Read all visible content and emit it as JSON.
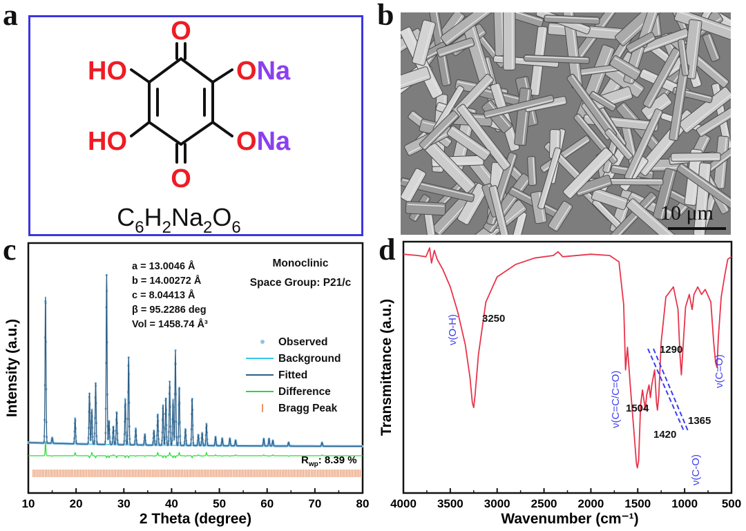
{
  "panels": {
    "a": {
      "label": "a"
    },
    "b": {
      "label": "b",
      "scale_bar": "10 μm"
    },
    "c": {
      "label": "c"
    },
    "d": {
      "label": "d"
    }
  },
  "molecule": {
    "top_o": "O",
    "bottom_o": "O",
    "ho_top": "HO",
    "ho_bottom": "HO",
    "ona_top_o": "O",
    "ona_top_na": "Na",
    "ona_bottom_o": "O",
    "ona_bottom_na": "Na",
    "formula": {
      "c": "C",
      "c_sub": "6",
      "h": "H",
      "h_sub": "2",
      "na": "Na",
      "na_sub": "2",
      "o": "O",
      "o_sub": "6"
    },
    "colors": {
      "oxygen": "#ee1c24",
      "sodium": "#8a40f0",
      "bond": "#111111",
      "frame": "#3c35e0"
    }
  },
  "chart_data": [
    {
      "type": "line",
      "xlabel": "2 Theta (degree)",
      "ylabel": "Intensity (a.u.)",
      "xlim": [
        10,
        80
      ],
      "xticks": [
        10,
        20,
        30,
        40,
        50,
        60,
        70,
        80
      ],
      "lattice": [
        "a = 13.0046 Å",
        "b = 14.00272 Å",
        "c = 8.04413 Å",
        "β = 95.2286 deg",
        "Vol = 1458.74 Å³"
      ],
      "crystal": [
        "Monoclinic",
        "Space Group: P21/c"
      ],
      "rwp": {
        "label": "R",
        "sub": "wp",
        "value": ": 8.39 %"
      },
      "legend": [
        {
          "name": "Observed",
          "color": "#8ec4e6",
          "marker": "circle"
        },
        {
          "name": "Background",
          "color": "#33c8e8",
          "marker": "line"
        },
        {
          "name": "Fitted",
          "color": "#2d5f87",
          "marker": "line"
        },
        {
          "name": "Difference",
          "color": "#22dd33",
          "marker": "line"
        },
        {
          "name": "Bragg Peak",
          "color": "#e8956a",
          "marker": "tick"
        }
      ],
      "peaks": [
        {
          "x": 13.6,
          "h": 0.8
        },
        {
          "x": 15.0,
          "h": 0.03
        },
        {
          "x": 19.8,
          "h": 0.14
        },
        {
          "x": 22.8,
          "h": 0.28
        },
        {
          "x": 23.3,
          "h": 0.19
        },
        {
          "x": 24.1,
          "h": 0.34
        },
        {
          "x": 26.4,
          "h": 0.93
        },
        {
          "x": 26.9,
          "h": 0.13
        },
        {
          "x": 27.8,
          "h": 0.1
        },
        {
          "x": 28.5,
          "h": 0.18
        },
        {
          "x": 30.3,
          "h": 0.25
        },
        {
          "x": 31.0,
          "h": 0.48
        },
        {
          "x": 32.5,
          "h": 0.09
        },
        {
          "x": 34.4,
          "h": 0.06
        },
        {
          "x": 36.3,
          "h": 0.08
        },
        {
          "x": 37.1,
          "h": 0.17
        },
        {
          "x": 38.2,
          "h": 0.22
        },
        {
          "x": 38.8,
          "h": 0.26
        },
        {
          "x": 39.6,
          "h": 0.35
        },
        {
          "x": 40.3,
          "h": 0.25
        },
        {
          "x": 40.8,
          "h": 0.52
        },
        {
          "x": 41.6,
          "h": 0.32
        },
        {
          "x": 42.9,
          "h": 0.09
        },
        {
          "x": 44.3,
          "h": 0.26
        },
        {
          "x": 45.6,
          "h": 0.06
        },
        {
          "x": 46.4,
          "h": 0.07
        },
        {
          "x": 47.3,
          "h": 0.12
        },
        {
          "x": 49.2,
          "h": 0.05
        },
        {
          "x": 50.6,
          "h": 0.04
        },
        {
          "x": 52.2,
          "h": 0.04
        },
        {
          "x": 53.4,
          "h": 0.03
        },
        {
          "x": 59.3,
          "h": 0.04
        },
        {
          "x": 60.4,
          "h": 0.04
        },
        {
          "x": 61.2,
          "h": 0.03
        },
        {
          "x": 64.5,
          "h": 0.02
        },
        {
          "x": 71.5,
          "h": 0.02
        }
      ]
    },
    {
      "type": "line",
      "xlabel": "Wavenumber (cm⁻¹)",
      "ylabel": "Transmittance (a.u.)",
      "xlim": [
        4000,
        500
      ],
      "xticks": [
        4000,
        3500,
        3000,
        2500,
        2000,
        1500,
        1000,
        500
      ],
      "series": [
        {
          "color": "#e8334a",
          "points": [
            [
              4000,
              0.95
            ],
            [
              3850,
              0.945
            ],
            [
              3760,
              0.94
            ],
            [
              3720,
              0.975
            ],
            [
              3700,
              0.915
            ],
            [
              3670,
              0.965
            ],
            [
              3640,
              0.93
            ],
            [
              3580,
              0.89
            ],
            [
              3500,
              0.82
            ],
            [
              3420,
              0.72
            ],
            [
              3340,
              0.59
            ],
            [
              3290,
              0.46
            ],
            [
              3265,
              0.36
            ],
            [
              3250,
              0.34
            ],
            [
              3235,
              0.39
            ],
            [
              3200,
              0.55
            ],
            [
              3120,
              0.76
            ],
            [
              3000,
              0.86
            ],
            [
              2800,
              0.91
            ],
            [
              2600,
              0.935
            ],
            [
              2400,
              0.945
            ],
            [
              2350,
              0.96
            ],
            [
              2300,
              0.94
            ],
            [
              2000,
              0.95
            ],
            [
              1800,
              0.945
            ],
            [
              1700,
              0.92
            ],
            [
              1650,
              0.75
            ],
            [
              1630,
              0.49
            ],
            [
              1610,
              0.58
            ],
            [
              1580,
              0.43
            ],
            [
              1540,
              0.24
            ],
            [
              1515,
              0.12
            ],
            [
              1504,
              0.1
            ],
            [
              1490,
              0.13
            ],
            [
              1470,
              0.35
            ],
            [
              1450,
              0.41
            ],
            [
              1430,
              0.36
            ],
            [
              1420,
              0.33
            ],
            [
              1405,
              0.39
            ],
            [
              1380,
              0.43
            ],
            [
              1365,
              0.38
            ],
            [
              1350,
              0.43
            ],
            [
              1320,
              0.49
            ],
            [
              1300,
              0.36
            ],
            [
              1290,
              0.33
            ],
            [
              1275,
              0.39
            ],
            [
              1250,
              0.6
            ],
            [
              1200,
              0.78
            ],
            [
              1120,
              0.82
            ],
            [
              1070,
              0.73
            ],
            [
              1050,
              0.55
            ],
            [
              1035,
              0.47
            ],
            [
              1020,
              0.56
            ],
            [
              990,
              0.74
            ],
            [
              950,
              0.79
            ],
            [
              920,
              0.73
            ],
            [
              900,
              0.79
            ],
            [
              860,
              0.82
            ],
            [
              820,
              0.79
            ],
            [
              780,
              0.81
            ],
            [
              720,
              0.76
            ],
            [
              690,
              0.6
            ],
            [
              670,
              0.52
            ],
            [
              655,
              0.5
            ],
            [
              640,
              0.62
            ],
            [
              610,
              0.78
            ],
            [
              570,
              0.87
            ],
            [
              540,
              0.93
            ],
            [
              500,
              0.94
            ]
          ]
        }
      ],
      "annotations": [
        {
          "text": "3250",
          "x": 3250
        },
        {
          "text": "1504",
          "x": 1504
        },
        {
          "text": "1290",
          "x": 1290
        },
        {
          "text": "1420",
          "x": 1420
        },
        {
          "text": "1365",
          "x": 1365
        }
      ],
      "assignments": [
        "ν(O-H)",
        "ν(C=C/C=O)",
        "ν(C=O)",
        "ν(C-O)"
      ],
      "assignment_color": "#3b3bf0"
    }
  ]
}
